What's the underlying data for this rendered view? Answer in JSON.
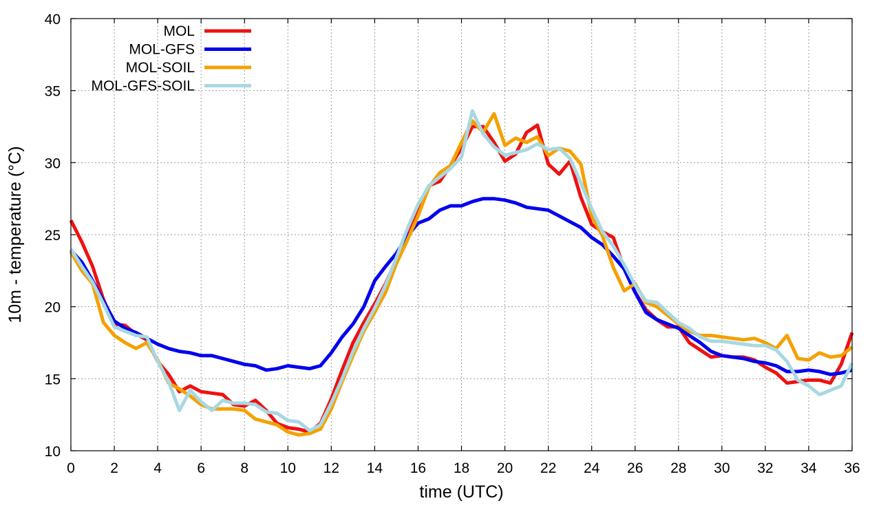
{
  "chart_data": {
    "type": "line",
    "title": "",
    "xlabel": "time (UTC)",
    "ylabel": "10m - temperature (°C)",
    "xlim": [
      0,
      36
    ],
    "ylim": [
      10,
      40
    ],
    "xticks": [
      0,
      2,
      4,
      6,
      8,
      10,
      12,
      14,
      16,
      18,
      20,
      22,
      24,
      26,
      28,
      30,
      32,
      34,
      36
    ],
    "yticks": [
      10,
      15,
      20,
      25,
      30,
      35,
      40
    ],
    "grid": true,
    "legend_position": "top-left",
    "series": [
      {
        "name": "MOL",
        "color": "#ee1111",
        "points": [
          [
            0,
            26.0
          ],
          [
            0.5,
            24.5
          ],
          [
            1,
            22.8
          ],
          [
            1.5,
            20.5
          ],
          [
            2,
            18.8
          ],
          [
            2.5,
            18.7
          ],
          [
            3,
            18.1
          ],
          [
            3.5,
            17.7
          ],
          [
            4,
            16.2
          ],
          [
            4.5,
            15.3
          ],
          [
            5,
            14.1
          ],
          [
            5.5,
            14.5
          ],
          [
            6,
            14.1
          ],
          [
            6.5,
            14.0
          ],
          [
            7,
            13.9
          ],
          [
            7.5,
            13.2
          ],
          [
            8,
            13.1
          ],
          [
            8.5,
            13.5
          ],
          [
            9,
            12.8
          ],
          [
            9.5,
            11.9
          ],
          [
            10,
            11.6
          ],
          [
            10.5,
            11.5
          ],
          [
            11,
            11.3
          ],
          [
            11.5,
            11.9
          ],
          [
            12,
            13.6
          ],
          [
            12.5,
            15.6
          ],
          [
            13,
            17.5
          ],
          [
            13.5,
            18.9
          ],
          [
            14,
            20.2
          ],
          [
            14.5,
            21.6
          ],
          [
            15,
            23.3
          ],
          [
            15.5,
            25.0
          ],
          [
            16,
            26.7
          ],
          [
            16.5,
            28.4
          ],
          [
            17,
            28.7
          ],
          [
            17.5,
            29.8
          ],
          [
            18,
            31.0
          ],
          [
            18.5,
            32.5
          ],
          [
            19,
            32.5
          ],
          [
            19.5,
            31.4
          ],
          [
            20,
            30.1
          ],
          [
            20.5,
            30.6
          ],
          [
            21,
            32.1
          ],
          [
            21.5,
            32.6
          ],
          [
            22,
            29.9
          ],
          [
            22.5,
            29.2
          ],
          [
            23,
            30.1
          ],
          [
            23.5,
            27.6
          ],
          [
            24,
            25.7
          ],
          [
            24.5,
            25.2
          ],
          [
            25,
            24.8
          ],
          [
            25.5,
            22.6
          ],
          [
            26,
            21.0
          ],
          [
            26.5,
            19.8
          ],
          [
            27,
            19.1
          ],
          [
            27.5,
            18.6
          ],
          [
            28,
            18.6
          ],
          [
            28.5,
            17.5
          ],
          [
            29,
            17.0
          ],
          [
            29.5,
            16.5
          ],
          [
            30,
            16.6
          ],
          [
            30.5,
            16.5
          ],
          [
            31,
            16.5
          ],
          [
            31.5,
            16.3
          ],
          [
            32,
            15.8
          ],
          [
            32.5,
            15.4
          ],
          [
            33,
            14.7
          ],
          [
            33.5,
            14.8
          ],
          [
            34,
            14.9
          ],
          [
            34.5,
            14.9
          ],
          [
            35,
            14.7
          ],
          [
            35.5,
            16.0
          ],
          [
            36,
            18.2
          ]
        ]
      },
      {
        "name": "MOL-GFS",
        "color": "#0000ee",
        "points": [
          [
            0,
            23.9
          ],
          [
            0.5,
            23.1
          ],
          [
            1,
            21.8
          ],
          [
            1.5,
            20.4
          ],
          [
            2,
            19.0
          ],
          [
            2.5,
            18.5
          ],
          [
            3,
            18.2
          ],
          [
            3.5,
            17.8
          ],
          [
            4,
            17.4
          ],
          [
            4.5,
            17.1
          ],
          [
            5,
            16.9
          ],
          [
            5.5,
            16.8
          ],
          [
            6,
            16.6
          ],
          [
            6.5,
            16.6
          ],
          [
            7,
            16.4
          ],
          [
            7.5,
            16.2
          ],
          [
            8,
            16.0
          ],
          [
            8.5,
            15.9
          ],
          [
            9,
            15.6
          ],
          [
            9.5,
            15.7
          ],
          [
            10,
            15.9
          ],
          [
            10.5,
            15.8
          ],
          [
            11,
            15.7
          ],
          [
            11.5,
            15.9
          ],
          [
            12,
            16.8
          ],
          [
            12.5,
            17.9
          ],
          [
            13,
            18.8
          ],
          [
            13.5,
            20.0
          ],
          [
            14,
            21.8
          ],
          [
            14.5,
            22.8
          ],
          [
            15,
            23.7
          ],
          [
            15.5,
            24.9
          ],
          [
            16,
            25.8
          ],
          [
            16.5,
            26.1
          ],
          [
            17,
            26.7
          ],
          [
            17.5,
            27.0
          ],
          [
            18,
            27.0
          ],
          [
            18.5,
            27.3
          ],
          [
            19,
            27.5
          ],
          [
            19.5,
            27.5
          ],
          [
            20,
            27.4
          ],
          [
            20.5,
            27.2
          ],
          [
            21,
            26.9
          ],
          [
            21.5,
            26.8
          ],
          [
            22,
            26.7
          ],
          [
            22.5,
            26.3
          ],
          [
            23,
            25.9
          ],
          [
            23.5,
            25.5
          ],
          [
            24,
            24.8
          ],
          [
            24.5,
            24.3
          ],
          [
            25,
            23.5
          ],
          [
            25.5,
            22.6
          ],
          [
            26,
            21.0
          ],
          [
            26.5,
            19.6
          ],
          [
            27,
            19.1
          ],
          [
            27.5,
            18.8
          ],
          [
            28,
            18.5
          ],
          [
            28.5,
            18.0
          ],
          [
            29,
            17.5
          ],
          [
            29.5,
            16.9
          ],
          [
            30,
            16.6
          ],
          [
            30.5,
            16.5
          ],
          [
            31,
            16.4
          ],
          [
            31.5,
            16.2
          ],
          [
            32,
            16.1
          ],
          [
            32.5,
            15.9
          ],
          [
            33,
            15.5
          ],
          [
            33.5,
            15.5
          ],
          [
            34,
            15.6
          ],
          [
            34.5,
            15.5
          ],
          [
            35,
            15.3
          ],
          [
            35.5,
            15.4
          ],
          [
            36,
            15.6
          ]
        ]
      },
      {
        "name": "MOL-SOIL",
        "color": "#f5a000",
        "points": [
          [
            0,
            23.8
          ],
          [
            0.5,
            22.5
          ],
          [
            1,
            21.6
          ],
          [
            1.5,
            18.9
          ],
          [
            2,
            18.0
          ],
          [
            2.5,
            17.5
          ],
          [
            3,
            17.1
          ],
          [
            3.5,
            17.5
          ],
          [
            4,
            16.3
          ],
          [
            4.5,
            14.7
          ],
          [
            5,
            14.3
          ],
          [
            5.5,
            13.8
          ],
          [
            6,
            13.2
          ],
          [
            6.5,
            12.9
          ],
          [
            7,
            12.9
          ],
          [
            7.5,
            12.9
          ],
          [
            8,
            12.8
          ],
          [
            8.5,
            12.2
          ],
          [
            9,
            12.0
          ],
          [
            9.5,
            11.8
          ],
          [
            10,
            11.3
          ],
          [
            10.5,
            11.1
          ],
          [
            11,
            11.2
          ],
          [
            11.5,
            11.5
          ],
          [
            12,
            12.9
          ],
          [
            12.5,
            14.8
          ],
          [
            13,
            16.6
          ],
          [
            13.5,
            18.3
          ],
          [
            14,
            19.6
          ],
          [
            14.5,
            21.0
          ],
          [
            15,
            23.0
          ],
          [
            15.5,
            24.6
          ],
          [
            16,
            26.3
          ],
          [
            16.5,
            28.3
          ],
          [
            17,
            29.3
          ],
          [
            17.5,
            29.8
          ],
          [
            18,
            31.4
          ],
          [
            18.5,
            32.9
          ],
          [
            19,
            32.1
          ],
          [
            19.5,
            33.4
          ],
          [
            20,
            31.2
          ],
          [
            20.5,
            31.7
          ],
          [
            21,
            31.4
          ],
          [
            21.5,
            31.8
          ],
          [
            22,
            30.5
          ],
          [
            22.5,
            31.0
          ],
          [
            23,
            30.8
          ],
          [
            23.5,
            29.9
          ],
          [
            24,
            26.3
          ],
          [
            24.5,
            24.9
          ],
          [
            25,
            22.7
          ],
          [
            25.5,
            21.1
          ],
          [
            26,
            21.6
          ],
          [
            26.5,
            20.3
          ],
          [
            27,
            20.0
          ],
          [
            27.5,
            19.4
          ],
          [
            28,
            18.8
          ],
          [
            28.5,
            18.3
          ],
          [
            29,
            18.0
          ],
          [
            29.5,
            18.0
          ],
          [
            30,
            17.9
          ],
          [
            30.5,
            17.8
          ],
          [
            31,
            17.7
          ],
          [
            31.5,
            17.8
          ],
          [
            32,
            17.5
          ],
          [
            32.5,
            17.1
          ],
          [
            33,
            18.0
          ],
          [
            33.5,
            16.4
          ],
          [
            34,
            16.3
          ],
          [
            34.5,
            16.8
          ],
          [
            35,
            16.5
          ],
          [
            35.5,
            16.6
          ],
          [
            36,
            17.2
          ]
        ]
      },
      {
        "name": "MOL-GFS-SOIL",
        "color": "#a8d8e2",
        "points": [
          [
            0,
            24.0
          ],
          [
            0.5,
            22.8
          ],
          [
            1,
            21.7
          ],
          [
            1.5,
            20.2
          ],
          [
            2,
            18.6
          ],
          [
            2.5,
            18.3
          ],
          [
            3,
            18.0
          ],
          [
            3.5,
            17.9
          ],
          [
            4,
            16.2
          ],
          [
            4.5,
            14.8
          ],
          [
            5,
            12.8
          ],
          [
            5.5,
            14.2
          ],
          [
            6,
            13.4
          ],
          [
            6.5,
            12.8
          ],
          [
            7,
            13.5
          ],
          [
            7.5,
            13.3
          ],
          [
            8,
            13.3
          ],
          [
            8.5,
            13.2
          ],
          [
            9,
            12.7
          ],
          [
            9.5,
            12.6
          ],
          [
            10,
            12.1
          ],
          [
            10.5,
            12.0
          ],
          [
            11,
            11.4
          ],
          [
            11.5,
            11.8
          ],
          [
            12,
            13.3
          ],
          [
            12.5,
            15.0
          ],
          [
            13,
            16.9
          ],
          [
            13.5,
            18.5
          ],
          [
            14,
            19.9
          ],
          [
            14.5,
            21.5
          ],
          [
            15,
            23.4
          ],
          [
            15.5,
            25.4
          ],
          [
            16,
            27.1
          ],
          [
            16.5,
            28.4
          ],
          [
            17,
            29.0
          ],
          [
            17.5,
            29.6
          ],
          [
            18,
            30.4
          ],
          [
            18.5,
            33.6
          ],
          [
            19,
            32.0
          ],
          [
            19.5,
            31.1
          ],
          [
            20,
            30.5
          ],
          [
            20.5,
            30.7
          ],
          [
            21,
            30.9
          ],
          [
            21.5,
            31.3
          ],
          [
            22,
            30.9
          ],
          [
            22.5,
            31.0
          ],
          [
            23,
            30.3
          ],
          [
            23.5,
            28.6
          ],
          [
            24,
            26.8
          ],
          [
            24.5,
            25.2
          ],
          [
            25,
            24.2
          ],
          [
            25.5,
            22.9
          ],
          [
            26,
            21.5
          ],
          [
            26.5,
            20.4
          ],
          [
            27,
            20.3
          ],
          [
            27.5,
            19.6
          ],
          [
            28,
            18.9
          ],
          [
            28.5,
            18.5
          ],
          [
            29,
            17.9
          ],
          [
            29.5,
            17.6
          ],
          [
            30,
            17.6
          ],
          [
            30.5,
            17.5
          ],
          [
            31,
            17.4
          ],
          [
            31.5,
            17.3
          ],
          [
            32,
            17.3
          ],
          [
            32.5,
            17.0
          ],
          [
            33,
            16.2
          ],
          [
            33.5,
            14.9
          ],
          [
            34,
            14.5
          ],
          [
            34.5,
            13.9
          ],
          [
            35,
            14.2
          ],
          [
            35.5,
            14.5
          ],
          [
            36,
            16.1
          ]
        ]
      }
    ]
  }
}
